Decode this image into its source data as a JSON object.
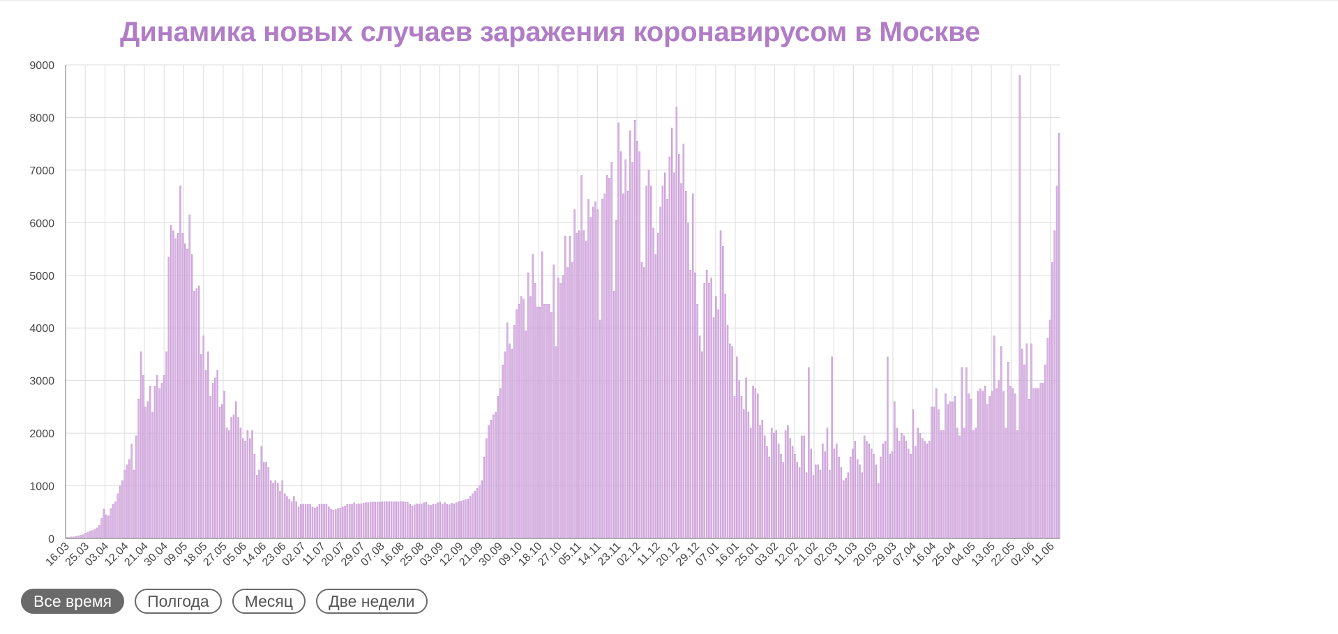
{
  "colors": {
    "bar": "#d9b3e3",
    "bar_stroke": "#b883c8",
    "title": "#b07cc6",
    "grid": "#dddddd",
    "axis": "#888888",
    "button_active_bg": "#6a6a6a"
  },
  "buttons": [
    {
      "label": "Все время",
      "active": true
    },
    {
      "label": "Полгода",
      "active": false
    },
    {
      "label": "Месяц",
      "active": false
    },
    {
      "label": "Две недели",
      "active": false
    }
  ],
  "chart_data": {
    "type": "bar",
    "title": "Динамика новых случаев заражения коронавирусом в Москве",
    "xlabel": "",
    "ylabel": "",
    "ylim": [
      0,
      9000
    ],
    "yticks": [
      0,
      1000,
      2000,
      3000,
      4000,
      5000,
      6000,
      7000,
      8000,
      9000
    ],
    "grid": true,
    "xtick_labels": [
      "16.03",
      "25.03",
      "03.04",
      "12.04",
      "21.04",
      "30.04",
      "09.05",
      "18.05",
      "27.05",
      "05.06",
      "14.06",
      "23.06",
      "02.07",
      "11.07",
      "20.07",
      "29.07",
      "07.08",
      "16.08",
      "25.08",
      "03.09",
      "12.09",
      "21.09",
      "30.09",
      "09.10",
      "18.10",
      "27.10",
      "05.11",
      "14.11",
      "23.11",
      "02.12",
      "11.12",
      "20.12",
      "29.12",
      "07.01",
      "16.01",
      "25.01",
      "03.02",
      "12.02",
      "21.02",
      "02.03",
      "11.03",
      "20.03",
      "29.03",
      "07.04",
      "16.04",
      "25.04",
      "04.05",
      "13.05",
      "22.05",
      "02.06",
      "11.06"
    ],
    "series": [
      {
        "values": [
          20,
          20,
          30,
          30,
          40,
          50,
          60,
          70,
          100,
          120,
          140,
          150,
          170,
          200,
          250,
          380,
          560,
          450,
          430,
          570,
          650,
          700,
          850,
          1000,
          1100,
          1300,
          1400,
          1500,
          1800,
          1300,
          1950,
          2650,
          3550,
          3100,
          2500,
          2600,
          2900,
          2400,
          2900,
          3100,
          2850,
          2950,
          3100,
          3550,
          5350,
          5950,
          5850,
          5700,
          5800,
          6700,
          5800,
          5600,
          5500,
          6150,
          5400,
          4700,
          4750,
          4800,
          3500,
          3850,
          3200,
          3550,
          2700,
          2950,
          3050,
          3200,
          2500,
          2550,
          2800,
          2100,
          2050,
          2300,
          2350,
          2600,
          2300,
          2100,
          1900,
          1850,
          2050,
          1900,
          2050,
          1600,
          1200,
          1300,
          1750,
          1450,
          1450,
          1350,
          1100,
          1050,
          1100,
          1050,
          900,
          1100,
          850,
          800,
          750,
          700,
          800,
          700,
          600,
          650,
          650,
          650,
          650,
          650,
          600,
          580,
          600,
          650,
          650,
          650,
          650,
          600,
          560,
          540,
          550,
          570,
          580,
          600,
          620,
          650,
          650,
          650,
          680,
          650,
          660,
          660,
          670,
          680,
          680,
          690,
          690,
          690,
          690,
          690,
          700,
          700,
          700,
          700,
          700,
          700,
          700,
          700,
          700,
          700,
          690,
          690,
          650,
          620,
          640,
          660,
          650,
          660,
          680,
          690,
          640,
          630,
          650,
          650,
          680,
          690,
          650,
          680,
          650,
          640,
          670,
          660,
          680,
          700,
          710,
          720,
          740,
          750,
          800,
          850,
          900,
          950,
          1000,
          1100,
          1550,
          1900,
          2150,
          2250,
          2350,
          2400,
          2700,
          2850,
          3300,
          3550,
          4100,
          3700,
          3600,
          4050,
          4350,
          4450,
          4600,
          4550,
          3950,
          5050,
          4600,
          5400,
          4850,
          4400,
          4400,
          5450,
          4450,
          4450,
          4450,
          4300,
          5200,
          3650,
          4950,
          4850,
          5000,
          5750,
          5150,
          5750,
          5250,
          6250,
          5800,
          5850,
          6900,
          5850,
          5650,
          6450,
          6100,
          6300,
          6400,
          6250,
          4150,
          6450,
          6550,
          6900,
          6850,
          7150,
          4700,
          6050,
          7900,
          7350,
          6550,
          7200,
          6600,
          7750,
          7150,
          7950,
          7550,
          7350,
          5250,
          5150,
          6700,
          7000,
          6700,
          5900,
          5400,
          5800,
          6300,
          6700,
          6950,
          6450,
          7250,
          7800,
          6950,
          8200,
          7300,
          6750,
          7500,
          6600,
          6000,
          5100,
          6550,
          5050,
          4450,
          3850,
          3550,
          4850,
          5100,
          4850,
          4950,
          4200,
          4600,
          4350,
          5850,
          5550,
          4650,
          4050,
          3700,
          3650,
          2700,
          3450,
          3000,
          2700,
          2450,
          3050,
          2400,
          2100,
          2900,
          2850,
          2750,
          2150,
          2250,
          1950,
          1750,
          1550,
          2100,
          2000,
          2050,
          1800,
          1600,
          1450,
          2050,
          2150,
          1900,
          1750,
          1600,
          1450,
          1350,
          1950,
          1950,
          1250,
          3250,
          1700,
          1200,
          1400,
          1400,
          1300,
          1800,
          1650,
          2100,
          1300,
          3450,
          1700,
          1800,
          1550,
          1350,
          1100,
          1150,
          1250,
          1550,
          1700,
          1850,
          1500,
          1400,
          1250,
          1950,
          1850,
          1800,
          1700,
          1600,
          1400,
          1050,
          1550,
          1800,
          1850,
          3450,
          1600,
          1650,
          2600,
          2100,
          1850,
          2000,
          1950,
          1850,
          1700,
          1600,
          2450,
          1750,
          2100,
          2000,
          1900,
          1850,
          1800,
          1850,
          2500,
          2500,
          2850,
          2450,
          2050,
          2050,
          2750,
          2550,
          2600,
          2600,
          2700,
          2100,
          1950,
          3250,
          2100,
          3250,
          2750,
          2650,
          2050,
          2100,
          2800,
          2850,
          2800,
          2900,
          2550,
          2700,
          2800,
          3850,
          2850,
          3000,
          3650,
          2800,
          2100,
          3350,
          2900,
          2850,
          2750,
          2050,
          8800,
          3600,
          3300,
          3700,
          2650,
          3700,
          2850,
          2850,
          2850,
          2950,
          2950,
          3300,
          3800,
          4150,
          5250,
          5850,
          6700,
          7700
        ]
      }
    ]
  }
}
